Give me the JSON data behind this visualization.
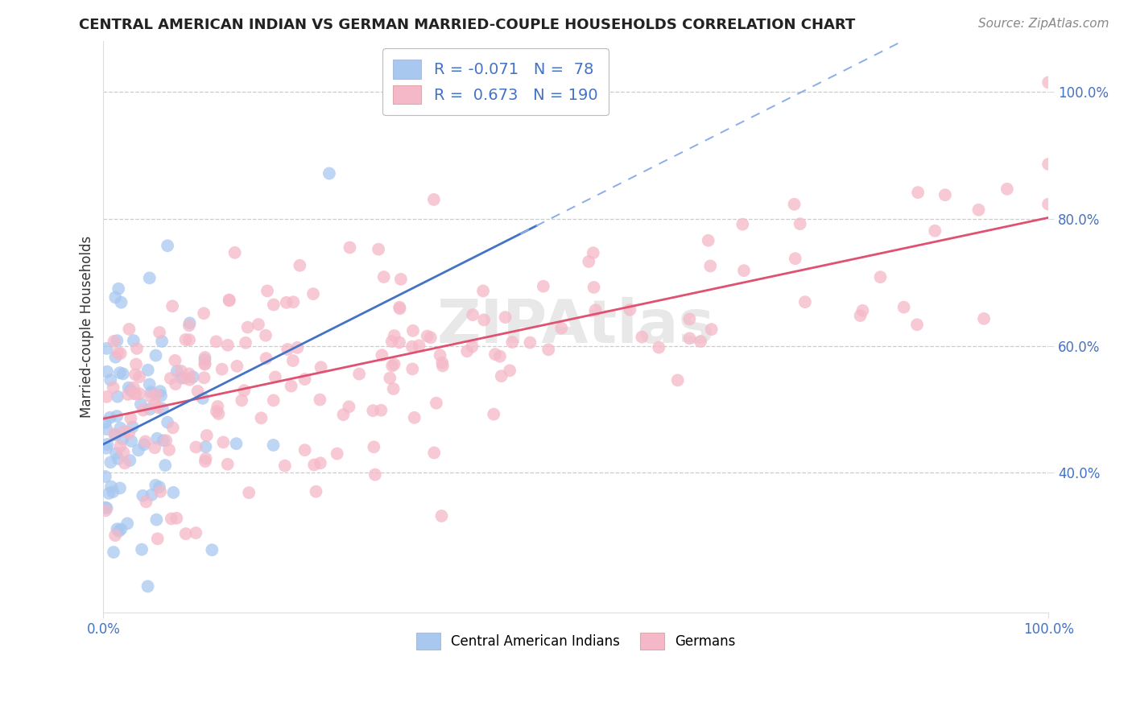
{
  "title": "CENTRAL AMERICAN INDIAN VS GERMAN MARRIED-COUPLE HOUSEHOLDS CORRELATION CHART",
  "source": "Source: ZipAtlas.com",
  "ylabel": "Married-couple Households",
  "watermark": "ZIPAtlas",
  "legend": {
    "blue_R": -0.071,
    "blue_N": 78,
    "pink_R": 0.673,
    "pink_N": 190,
    "blue_label": "Central American Indians",
    "pink_label": "Germans"
  },
  "blue_color": "#a8c8f0",
  "pink_color": "#f5b8c8",
  "blue_line_color": "#4472c4",
  "pink_line_color": "#e05070",
  "blue_line_alpha": 1.0,
  "blue_dash_color": "#8aaee8",
  "xlim": [
    0.0,
    1.0
  ],
  "ylim_min": 0.18,
  "ylim_max": 1.08,
  "yticks": [
    0.4,
    0.6,
    0.8,
    1.0
  ],
  "ytick_labels": [
    "40.0%",
    "60.0%",
    "80.0%",
    "100.0%"
  ],
  "xtick_labels": [
    "0.0%",
    "100.0%"
  ],
  "background_color": "#ffffff",
  "grid_color": "#cccccc",
  "tick_color": "#4472c4",
  "title_color": "#222222",
  "ylabel_color": "#333333",
  "source_color": "#888888"
}
